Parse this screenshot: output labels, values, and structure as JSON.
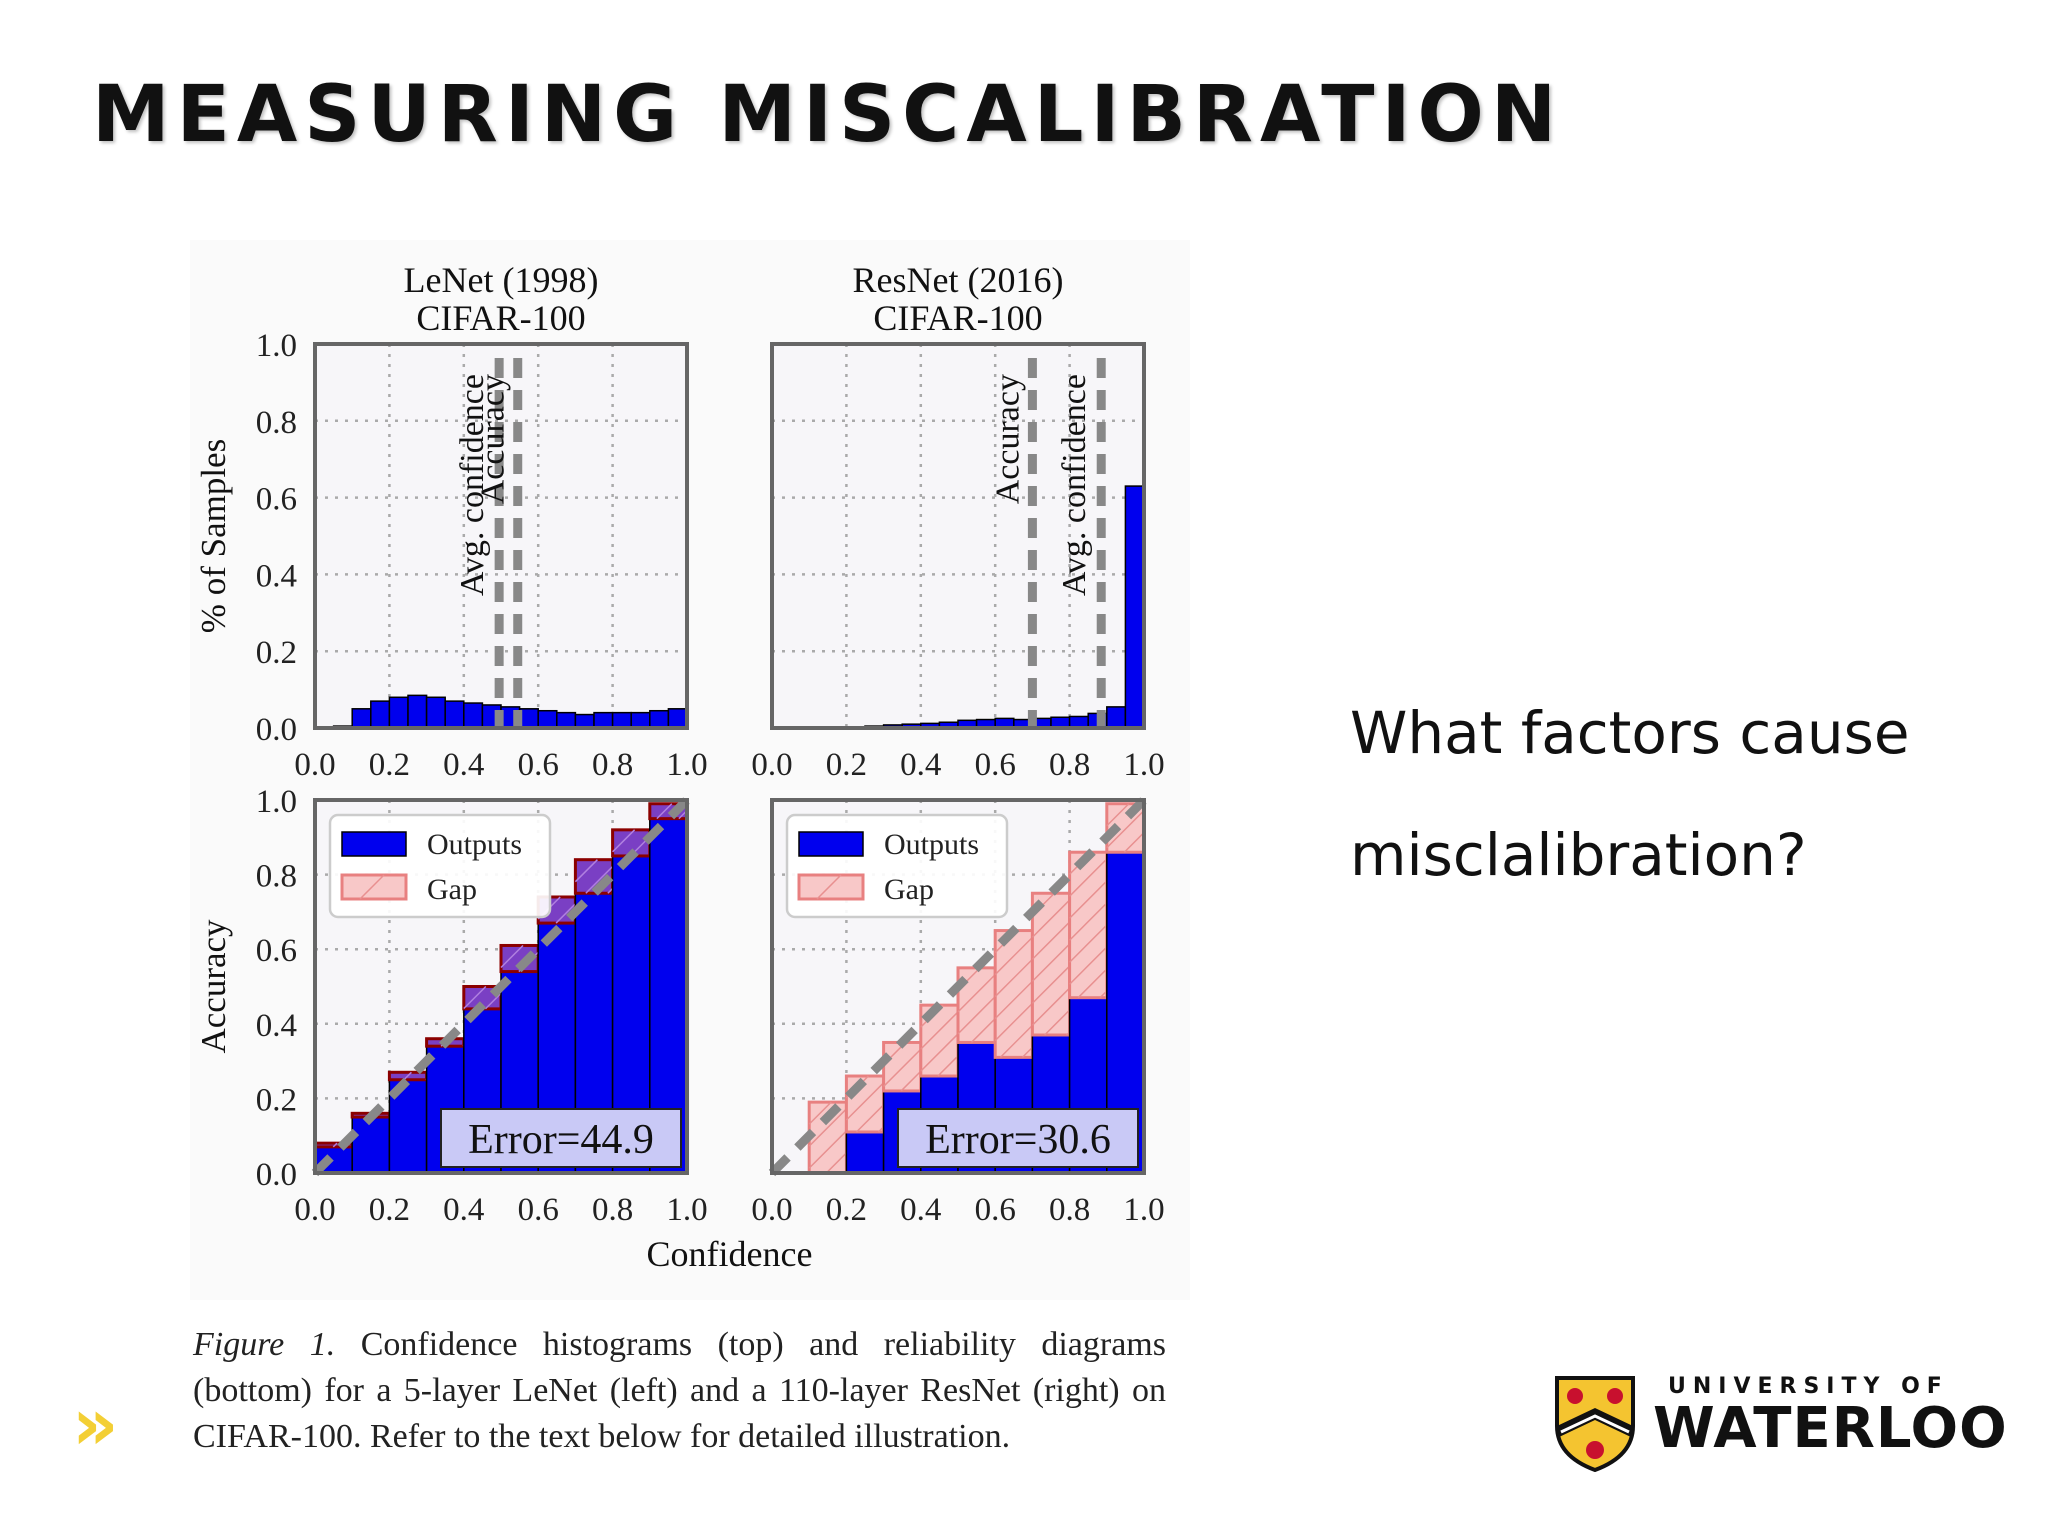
{
  "slide": {
    "title": "MEASURING MISCALIBRATION",
    "question_line1": "What factors cause",
    "question_line2": "misclalibration?",
    "caption_label": "Figure 1.",
    "caption_text": "Confidence histograms (top) and reliability diagrams (bottom) for a 5-layer LeNet (left) and a 110-layer ResNet (right) on CIFAR-100. Refer to the text below for detailed illustration.",
    "nav_icon": "double-chevron-right-icon",
    "logo": {
      "line1": "UNIVERSITY OF",
      "line2": "WATERLOO",
      "icon": "waterloo-crest-icon"
    }
  },
  "colors": {
    "outputs": "#0000ee",
    "gap_fill": "#f8c8c8",
    "gap_edge": "#e88080",
    "overlap": "#7a3fc4",
    "bar_edge": "#8b0000",
    "avg_line": "#888888",
    "accent": "#f3cf35"
  },
  "chart_data": [
    {
      "type": "bar",
      "role": "confidence-histogram",
      "title_line1": "LeNet (1998)",
      "title_line2": "CIFAR-100",
      "ylabel": "% of Samples",
      "xlim": [
        0.0,
        1.0
      ],
      "ylim": [
        0.0,
        1.0
      ],
      "xticks": [
        "0.0",
        "0.2",
        "0.4",
        "0.6",
        "0.8",
        "1.0"
      ],
      "yticks": [
        "0.0",
        "0.2",
        "0.4",
        "0.6",
        "0.8",
        "1.0"
      ],
      "bin_width": 0.05,
      "bin_starts": [
        0.0,
        0.05,
        0.1,
        0.15,
        0.2,
        0.25,
        0.3,
        0.35,
        0.4,
        0.45,
        0.5,
        0.55,
        0.6,
        0.65,
        0.7,
        0.75,
        0.8,
        0.85,
        0.9,
        0.95
      ],
      "values": [
        0.0,
        0.005,
        0.05,
        0.07,
        0.08,
        0.085,
        0.08,
        0.07,
        0.065,
        0.06,
        0.055,
        0.05,
        0.045,
        0.04,
        0.035,
        0.04,
        0.04,
        0.04,
        0.045,
        0.05
      ],
      "vlines": [
        {
          "label": "Avg. confidence",
          "x": 0.495
        },
        {
          "label": "Accuracy",
          "x": 0.545
        }
      ]
    },
    {
      "type": "bar",
      "role": "confidence-histogram",
      "title_line1": "ResNet (2016)",
      "title_line2": "CIFAR-100",
      "ylabel": "",
      "xlim": [
        0.0,
        1.0
      ],
      "ylim": [
        0.0,
        1.0
      ],
      "xticks": [
        "0.0",
        "0.2",
        "0.4",
        "0.6",
        "0.8",
        "1.0"
      ],
      "yticks": [],
      "bin_width": 0.05,
      "bin_starts": [
        0.0,
        0.05,
        0.1,
        0.15,
        0.2,
        0.25,
        0.3,
        0.35,
        0.4,
        0.45,
        0.5,
        0.55,
        0.6,
        0.65,
        0.7,
        0.75,
        0.8,
        0.85,
        0.9,
        0.95
      ],
      "values": [
        0.0,
        0.0,
        0.0,
        0.0,
        0.003,
        0.005,
        0.008,
        0.01,
        0.012,
        0.015,
        0.02,
        0.022,
        0.025,
        0.022,
        0.025,
        0.028,
        0.03,
        0.038,
        0.055,
        0.63
      ],
      "vlines": [
        {
          "label": "Accuracy",
          "x": 0.7
        },
        {
          "label": "Avg. confidence",
          "x": 0.885
        }
      ]
    },
    {
      "type": "bar",
      "role": "reliability-diagram",
      "xlabel": "",
      "ylabel": "Accuracy",
      "xlim": [
        0.0,
        1.0
      ],
      "ylim": [
        0.0,
        1.0
      ],
      "xticks": [
        "0.0",
        "0.2",
        "0.4",
        "0.6",
        "0.8",
        "1.0"
      ],
      "yticks": [
        "0.0",
        "0.2",
        "0.4",
        "0.6",
        "0.8",
        "1.0"
      ],
      "bin_width": 0.1,
      "bin_starts": [
        0.0,
        0.1,
        0.2,
        0.3,
        0.4,
        0.5,
        0.6,
        0.7,
        0.8,
        0.9
      ],
      "outputs": [
        0.07,
        0.15,
        0.25,
        0.34,
        0.44,
        0.54,
        0.67,
        0.75,
        0.85,
        0.95
      ],
      "gap_top": [
        0.08,
        0.16,
        0.27,
        0.36,
        0.5,
        0.61,
        0.74,
        0.84,
        0.92,
        0.99
      ],
      "legend": [
        "Outputs",
        "Gap"
      ],
      "annotation": "Error=44.9"
    },
    {
      "type": "bar",
      "role": "reliability-diagram",
      "xlabel": "Confidence",
      "ylabel": "",
      "xlim": [
        0.0,
        1.0
      ],
      "ylim": [
        0.0,
        1.0
      ],
      "xticks": [
        "0.0",
        "0.2",
        "0.4",
        "0.6",
        "0.8",
        "1.0"
      ],
      "yticks": [],
      "bin_width": 0.1,
      "bin_starts": [
        0.0,
        0.1,
        0.2,
        0.3,
        0.4,
        0.5,
        0.6,
        0.7,
        0.8,
        0.9
      ],
      "outputs": [
        0.0,
        0.0,
        0.11,
        0.22,
        0.26,
        0.35,
        0.31,
        0.37,
        0.47,
        0.86
      ],
      "gap_top": [
        0.0,
        0.19,
        0.26,
        0.35,
        0.45,
        0.55,
        0.65,
        0.75,
        0.86,
        0.99
      ],
      "legend": [
        "Outputs",
        "Gap"
      ],
      "annotation": "Error=30.6"
    }
  ]
}
